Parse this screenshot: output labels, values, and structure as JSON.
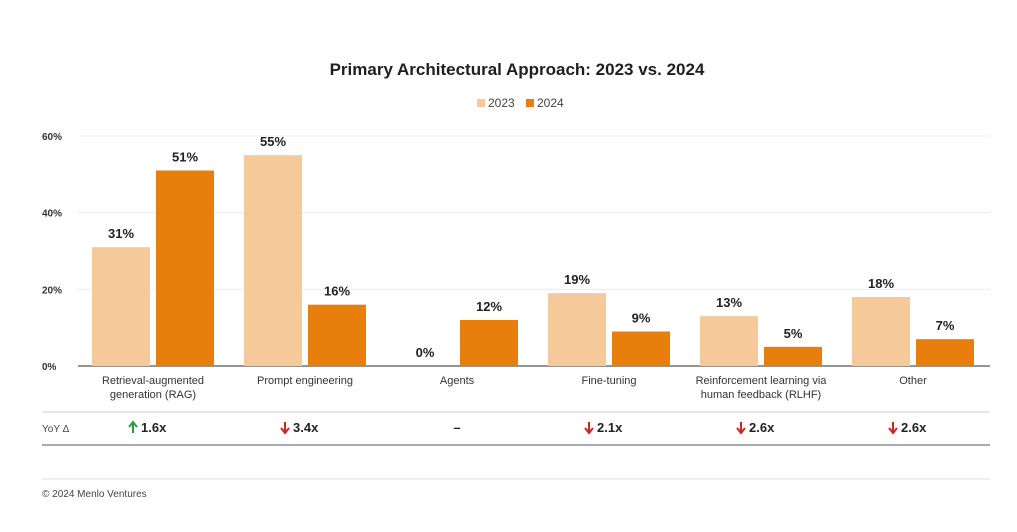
{
  "chart_data": {
    "type": "bar",
    "title": "Primary Architectural Approach: 2023 vs. 2024",
    "categories": [
      [
        "Retrieval-augmented",
        "generation (RAG)"
      ],
      [
        "Prompt engineering"
      ],
      [
        "Agents"
      ],
      [
        "Fine-tuning"
      ],
      [
        "Reinforcement learning via",
        "human feedback (RLHF)"
      ],
      [
        "Other"
      ]
    ],
    "series": [
      {
        "name": "2023",
        "values": [
          31,
          55,
          0,
          19,
          13,
          18
        ],
        "labels": [
          "31%",
          "55%",
          "0%",
          "19%",
          "13%",
          "18%"
        ]
      },
      {
        "name": "2024",
        "values": [
          51,
          16,
          12,
          9,
          5,
          7
        ],
        "labels": [
          "51%",
          "16%",
          "12%",
          "9%",
          "5%",
          "7%"
        ]
      }
    ],
    "ylim": [
      0,
      60
    ],
    "yticks": [
      0,
      20,
      40,
      60
    ],
    "ytick_labels": [
      "0%",
      "20%",
      "40%",
      "60%"
    ],
    "legend_position": "top-center",
    "grid": true,
    "yoy_label": "YoY Δ",
    "yoy": [
      {
        "direction": "up",
        "text": "1.6x"
      },
      {
        "direction": "down",
        "text": "3.4x"
      },
      {
        "direction": "none",
        "text": "–"
      },
      {
        "direction": "down",
        "text": "2.1x"
      },
      {
        "direction": "down",
        "text": "2.6x"
      },
      {
        "direction": "down",
        "text": "2.6x"
      }
    ]
  },
  "colors": {
    "series_2023": "#f5c99a",
    "series_2024": "#e87e0c",
    "up_arrow": "#2a9d3f",
    "down_arrow": "#d62020",
    "grid": "#ececec",
    "axis": "#555555"
  },
  "footer": "© 2024 Menlo Ventures"
}
